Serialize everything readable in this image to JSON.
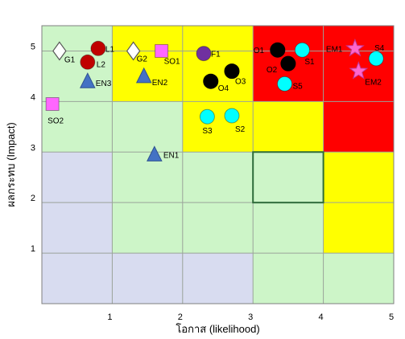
{
  "chart_data": {
    "type": "scatter",
    "title": "",
    "xlabel": "โอกาส (likelihood)",
    "ylabel": "ผลกระทบ (Impact)",
    "xlim": [
      0,
      5
    ],
    "ylim": [
      0,
      5.5
    ],
    "x_ticks": [
      "1",
      "2",
      "3",
      "4",
      "5"
    ],
    "y_ticks": [
      "1",
      "2",
      "3",
      "4",
      "5"
    ],
    "grid": true,
    "legend": "none",
    "zone_colors": {
      "low": "#d8dcf0",
      "medium": "#cdf5c8",
      "high": "#ffff00",
      "very_high": "#ff0000"
    },
    "zones": [
      [
        "medium",
        "high",
        "high",
        "very_high",
        "very_high"
      ],
      [
        "medium",
        "medium",
        "high",
        "high",
        "very_high"
      ],
      [
        "low",
        "medium",
        "medium",
        "medium",
        "high"
      ],
      [
        "low",
        "medium",
        "medium",
        "medium",
        "high"
      ],
      [
        "low",
        "low",
        "low",
        "medium",
        "medium"
      ]
    ],
    "highlight_cell": {
      "x": [
        3,
        4
      ],
      "y": [
        2,
        3
      ]
    },
    "points": [
      {
        "label": "G1",
        "x": 0.25,
        "y": 5.0,
        "shape": "diamond",
        "color": "#ffffff"
      },
      {
        "label": "L1",
        "x": 0.8,
        "y": 5.05,
        "shape": "circle",
        "color": "#c00000"
      },
      {
        "label": "L2",
        "x": 0.65,
        "y": 4.78,
        "shape": "circle",
        "color": "#c00000"
      },
      {
        "label": "EN3",
        "x": 0.65,
        "y": 4.4,
        "shape": "triangle",
        "color": "#4472c4"
      },
      {
        "label": "G2",
        "x": 1.3,
        "y": 5.0,
        "shape": "diamond",
        "color": "#ffffff"
      },
      {
        "label": "SO1",
        "x": 1.7,
        "y": 5.0,
        "shape": "square",
        "color": "#ff66ff"
      },
      {
        "label": "EN2",
        "x": 1.45,
        "y": 4.5,
        "shape": "triangle",
        "color": "#4472c4"
      },
      {
        "label": "SO2",
        "x": 0.15,
        "y": 3.95,
        "shape": "square",
        "color": "#ff66ff"
      },
      {
        "label": "EN1",
        "x": 1.6,
        "y": 2.95,
        "shape": "triangle",
        "color": "#4472c4"
      },
      {
        "label": "F1",
        "x": 2.3,
        "y": 4.95,
        "shape": "circle",
        "color": "#7030a0"
      },
      {
        "label": "O3",
        "x": 2.7,
        "y": 4.6,
        "shape": "circle",
        "color": "#000000"
      },
      {
        "label": "O4",
        "x": 2.4,
        "y": 4.4,
        "shape": "circle",
        "color": "#000000"
      },
      {
        "label": "S3",
        "x": 2.35,
        "y": 3.7,
        "shape": "circle",
        "color": "#00ffff"
      },
      {
        "label": "S2",
        "x": 2.7,
        "y": 3.72,
        "shape": "circle",
        "color": "#00ffff"
      },
      {
        "label": "O1",
        "x": 3.35,
        "y": 5.02,
        "shape": "circle",
        "color": "#000000"
      },
      {
        "label": "O2",
        "x": 3.5,
        "y": 4.75,
        "shape": "circle",
        "color": "#000000"
      },
      {
        "label": "S1",
        "x": 3.7,
        "y": 5.02,
        "shape": "circle",
        "color": "#00ffff"
      },
      {
        "label": "S5",
        "x": 3.45,
        "y": 4.35,
        "shape": "circle",
        "color": "#00ffff"
      },
      {
        "label": "EM1",
        "x": 4.45,
        "y": 5.05,
        "shape": "star",
        "color": "#ff66cc"
      },
      {
        "label": "S4",
        "x": 4.75,
        "y": 4.85,
        "shape": "circle",
        "color": "#00ffff"
      },
      {
        "label": "EM2",
        "x": 4.5,
        "y": 4.6,
        "shape": "star",
        "color": "#ff66cc"
      }
    ]
  }
}
